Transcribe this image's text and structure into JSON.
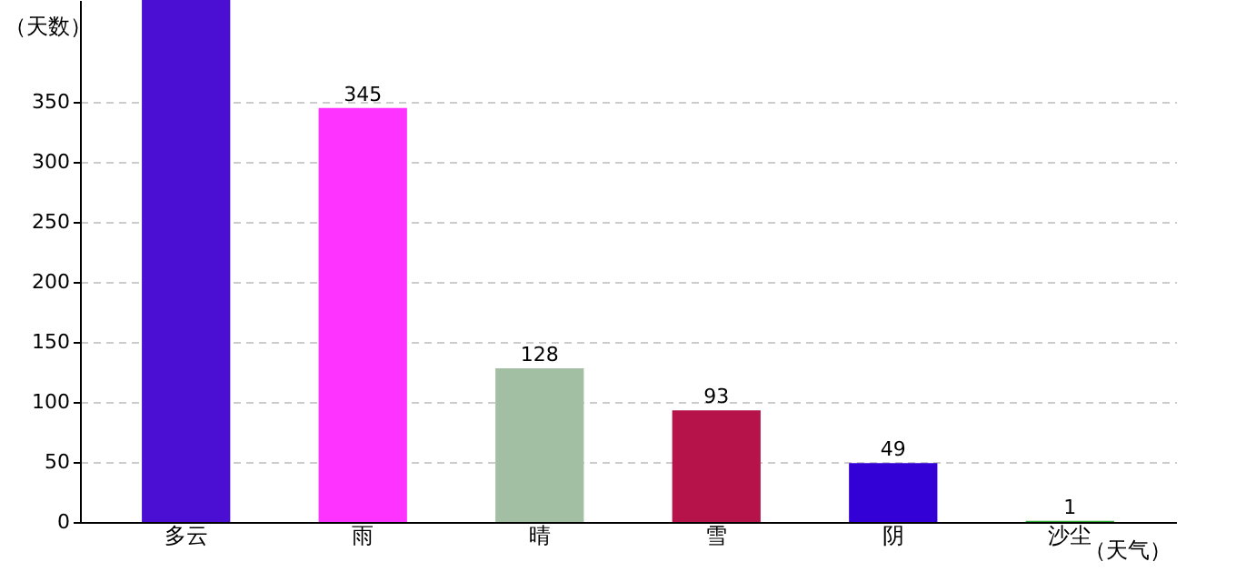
{
  "chart_data": {
    "type": "bar",
    "xlabel": "（天气）",
    "ylabel": "（天数）",
    "categories": [
      "多云",
      "雨",
      "晴",
      "雪",
      "阴",
      "沙尘"
    ],
    "values": [
      435,
      345,
      128,
      93,
      49,
      1
    ],
    "value_labels": [
      null,
      "345",
      "128",
      "93",
      "49",
      "1"
    ],
    "colors": [
      "#4a0fd2",
      "#ff33ff",
      "#a3bfa3",
      "#b5134a",
      "#3300d6",
      "#33aa33"
    ],
    "ylim": [
      0,
      435
    ],
    "yticks": [
      0,
      50,
      100,
      150,
      200,
      250,
      300,
      350
    ],
    "grid": "y"
  }
}
